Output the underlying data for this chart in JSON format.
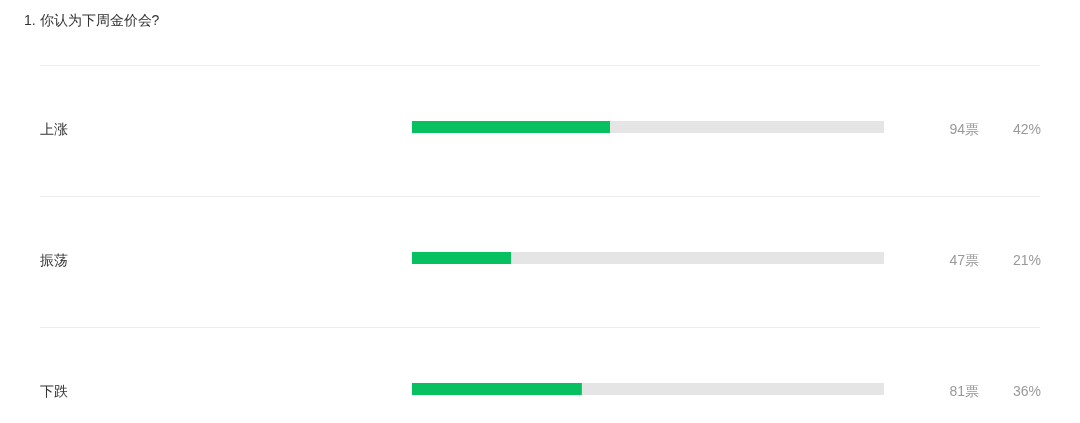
{
  "chart_data": {
    "type": "bar",
    "orientation": "horizontal",
    "stacked": true,
    "grid": "y",
    "title": "1. 你认为下周金价会?",
    "categories": [
      "上涨",
      "振荡",
      "下跌"
    ],
    "series": [
      {
        "color": "#07c160",
        "values": [
          42,
          21,
          36
        ],
        "value_labels": [
          "42%",
          "21%",
          "36%"
        ]
      },
      {
        "color": "#e5e5e5",
        "values": [
          58,
          79,
          64
        ]
      }
    ],
    "annotations": [
      "94票",
      "47票",
      "81票"
    ]
  }
}
